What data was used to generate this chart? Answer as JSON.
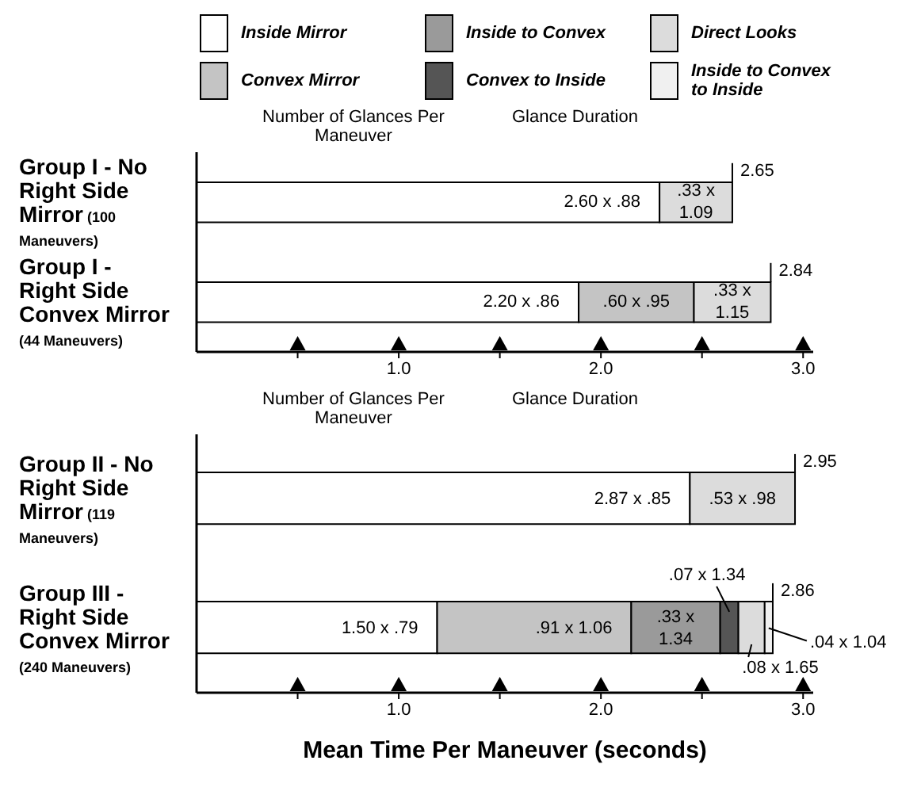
{
  "chart_data": [
    {
      "type": "bar",
      "orientation": "horizontal",
      "stacked": true,
      "legend": "top",
      "categories": [
        "Group I - No Right Side Mirror (100 Maneuvers)",
        "Group I - Right Side Convex Mirror (44 Maneuvers)"
      ],
      "series": [
        {
          "name": "Inside Mirror",
          "color": "#ffffff",
          "values": [
            2.29,
            1.89
          ]
        },
        {
          "name": "Convex Mirror",
          "color": "#c4c4c4",
          "values": [
            null,
            0.57
          ]
        },
        {
          "name": "Inside to Convex",
          "color": "#9a9a9a",
          "values": [
            null,
            null
          ]
        },
        {
          "name": "Convex to Inside",
          "color": "#555555",
          "values": [
            null,
            null
          ]
        },
        {
          "name": "Direct Looks",
          "color": "#dcdcdc",
          "values": [
            0.36,
            0.38
          ]
        },
        {
          "name": "Inside to Convex to Inside",
          "color": "#f0f0f0",
          "values": [
            null,
            null
          ]
        }
      ],
      "totals": [
        "2.65",
        "2.84"
      ],
      "xlim": [
        0,
        3.05
      ],
      "xticks": [
        {
          "value": 0.5,
          "label": null
        },
        {
          "value": 1,
          "label": "1.0"
        },
        {
          "value": 1.5,
          "label": null
        },
        {
          "value": 2,
          "label": "2.0"
        },
        {
          "value": 2.5,
          "label": null
        },
        {
          "value": 3,
          "label": "3.0"
        }
      ],
      "annotations": [
        "Number of Glances Per Maneuver",
        "Glance Duration",
        {
          "text": "2.60 x .88",
          "x": 2.29,
          "y": "Group I - No Right Side Mirror (100 Maneuvers)"
        },
        {
          "text": ".33 x 1.09",
          "x": 2.65,
          "y": "Group I - No Right Side Mirror (100 Maneuvers)"
        },
        {
          "text": "2.20 x .86",
          "x": 1.89,
          "y": "Group I - Right Side Convex Mirror (44 Maneuvers)"
        },
        {
          "text": ".60 x .95",
          "x": 2.46,
          "y": "Group I - Right Side Convex Mirror (44 Maneuvers)"
        },
        {
          "text": ".33 x 1.15",
          "x": 2.84,
          "y": "Group I - Right Side Convex Mirror (44 Maneuvers)"
        }
      ]
    },
    {
      "type": "bar",
      "orientation": "horizontal",
      "stacked": true,
      "categories": [
        "Group II - No Right Side Mirror (119 Maneuvers)",
        "Group III - Right Side Convex Mirror (240 Maneuvers)"
      ],
      "series": [
        {
          "color": "#ffffff",
          "values": [
            2.44,
            1.19
          ]
        },
        {
          "color": "#c4c4c4",
          "values": [
            null,
            0.96
          ]
        },
        {
          "color": "#9a9a9a",
          "values": [
            null,
            0.44
          ]
        },
        {
          "color": "#555555",
          "values": [
            null,
            0.09
          ]
        },
        {
          "color": "#dcdcdc",
          "values": [
            0.52,
            0.13
          ]
        },
        {
          "color": "#f0f0f0",
          "values": [
            null,
            0.04
          ]
        }
      ],
      "totals": [
        "2.95",
        "2.86"
      ],
      "xlim": [
        0,
        3.05
      ],
      "xticks": [
        {
          "value": 0.5,
          "label": null
        },
        {
          "value": 1,
          "label": "1.0"
        },
        {
          "value": 1.5,
          "label": null
        },
        {
          "value": 2,
          "label": "2.0"
        },
        {
          "value": 2.5,
          "label": null
        },
        {
          "value": 3,
          "label": "3.0"
        }
      ],
      "xlabel": "Mean Time Per Maneuver (seconds)",
      "annotations": [
        "Number of Glances Per Maneuver",
        "Glance Duration",
        {
          "text": "2.87 x .85",
          "x": 2.44,
          "y": "Group II - No Right Side Mirror (119 Maneuvers)"
        },
        {
          "text": ".53 x .98",
          "x": 2.96,
          "y": "Group II - No Right Side Mirror (119 Maneuvers)"
        },
        {
          "text": "1.50 x .79",
          "x": 1.19,
          "y": "Group III - Right Side Convex Mirror (240 Maneuvers)"
        },
        {
          "text": ".91 x 1.06",
          "x": 2.15,
          "y": "Group III - Right Side Convex Mirror (240 Maneuvers)"
        },
        {
          "text": ".33 x 1.34",
          "x": 2.59,
          "y": "Group III - Right Side Convex Mirror (240 Maneuvers)"
        },
        {
          "text": ".07 x 1.34",
          "x": 2.68,
          "y": "Group III - Right Side Convex Mirror (240 Maneuvers)"
        },
        {
          "text": ".08 x 1.65",
          "x": 2.81,
          "y": "Group III - Right Side Convex Mirror (240 Maneuvers)"
        },
        {
          "text": ".04 x 1.04",
          "x": 2.85,
          "y": "Group III - Right Side Convex Mirror (240 Maneuvers)"
        }
      ]
    }
  ]
}
